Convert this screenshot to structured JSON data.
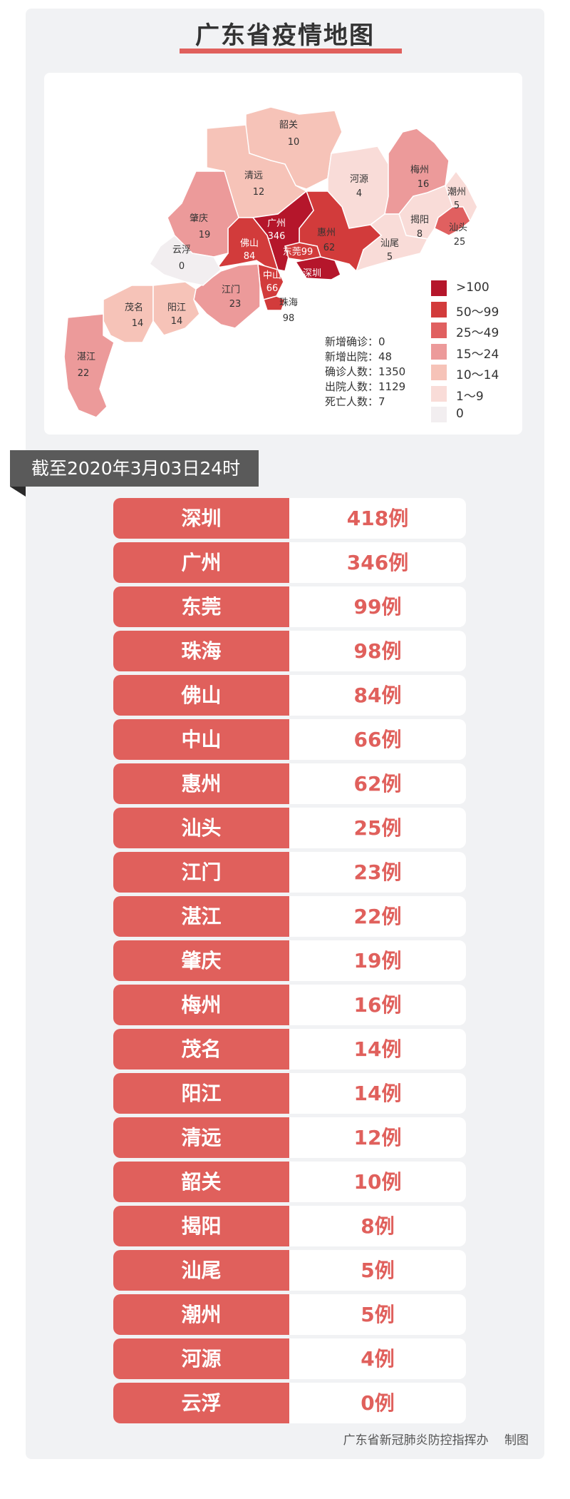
{
  "title": "广东省疫情地图",
  "map": {
    "regions": [
      {
        "name": "韶关",
        "count": "10",
        "tier": 4
      },
      {
        "name": "清远",
        "count": "12",
        "tier": 4
      },
      {
        "name": "河源",
        "count": "4",
        "tier": 5
      },
      {
        "name": "梅州",
        "count": "16",
        "tier": 3
      },
      {
        "name": "潮州",
        "count": "5",
        "tier": 5
      },
      {
        "name": "揭阳",
        "count": "8",
        "tier": 5
      },
      {
        "name": "汕头",
        "count": "25",
        "tier": 2
      },
      {
        "name": "汕尾",
        "count": "5",
        "tier": 5
      },
      {
        "name": "惠州",
        "count": "62",
        "tier": 1
      },
      {
        "name": "广州",
        "count": "346",
        "tier": 0
      },
      {
        "name": "东莞",
        "count": "99",
        "tier": 1
      },
      {
        "name": "深圳",
        "count": "418",
        "tier": 0
      },
      {
        "name": "佛山",
        "count": "84",
        "tier": 1
      },
      {
        "name": "中山",
        "count": "66",
        "tier": 1
      },
      {
        "name": "珠海",
        "count": "98",
        "tier": 1
      },
      {
        "name": "江门",
        "count": "23",
        "tier": 3
      },
      {
        "name": "肇庆",
        "count": "19",
        "tier": 3
      },
      {
        "name": "云浮",
        "count": "0",
        "tier": 6
      },
      {
        "name": "茂名",
        "count": "14",
        "tier": 4
      },
      {
        "name": "阳江",
        "count": "14",
        "tier": 4
      },
      {
        "name": "湛江",
        "count": "22",
        "tier": 3
      }
    ],
    "stats": [
      {
        "label": "新增确诊",
        "value": "0"
      },
      {
        "label": "新增出院",
        "value": "48"
      },
      {
        "label": "确诊人数",
        "value": "1350"
      },
      {
        "label": "出院人数",
        "value": "1129"
      },
      {
        "label": "死亡人数",
        "value": "7"
      }
    ],
    "legend": [
      {
        "label": ">100",
        "color": "#b5162b"
      },
      {
        "label": "50～99",
        "color": "#d23b3b"
      },
      {
        "label": "25～49",
        "color": "#e06060"
      },
      {
        "label": "15～24",
        "color": "#ec9a9a"
      },
      {
        "label": "10～14",
        "color": "#f6c3b8"
      },
      {
        "label": "1～9",
        "color": "#f9dcd8"
      },
      {
        "label": "0",
        "color": "#f2eef0"
      }
    ]
  },
  "date_banner": "截至2020年3月03日24时",
  "rows": [
    {
      "city": "深圳",
      "count": "418例"
    },
    {
      "city": "广州",
      "count": "346例"
    },
    {
      "city": "东莞",
      "count": "99例"
    },
    {
      "city": "珠海",
      "count": "98例"
    },
    {
      "city": "佛山",
      "count": "84例"
    },
    {
      "city": "中山",
      "count": "66例"
    },
    {
      "city": "惠州",
      "count": "62例"
    },
    {
      "city": "汕头",
      "count": "25例"
    },
    {
      "city": "江门",
      "count": "23例"
    },
    {
      "city": "湛江",
      "count": "22例"
    },
    {
      "city": "肇庆",
      "count": "19例"
    },
    {
      "city": "梅州",
      "count": "16例"
    },
    {
      "city": "茂名",
      "count": "14例"
    },
    {
      "city": "阳江",
      "count": "14例"
    },
    {
      "city": "清远",
      "count": "12例"
    },
    {
      "city": "韶关",
      "count": "10例"
    },
    {
      "city": "揭阳",
      "count": "8例"
    },
    {
      "city": "汕尾",
      "count": "5例"
    },
    {
      "city": "潮州",
      "count": "5例"
    },
    {
      "city": "河源",
      "count": "4例"
    },
    {
      "city": "云浮",
      "count": "0例"
    }
  ],
  "footer": "广东省新冠肺炎防控指挥办　 制图"
}
